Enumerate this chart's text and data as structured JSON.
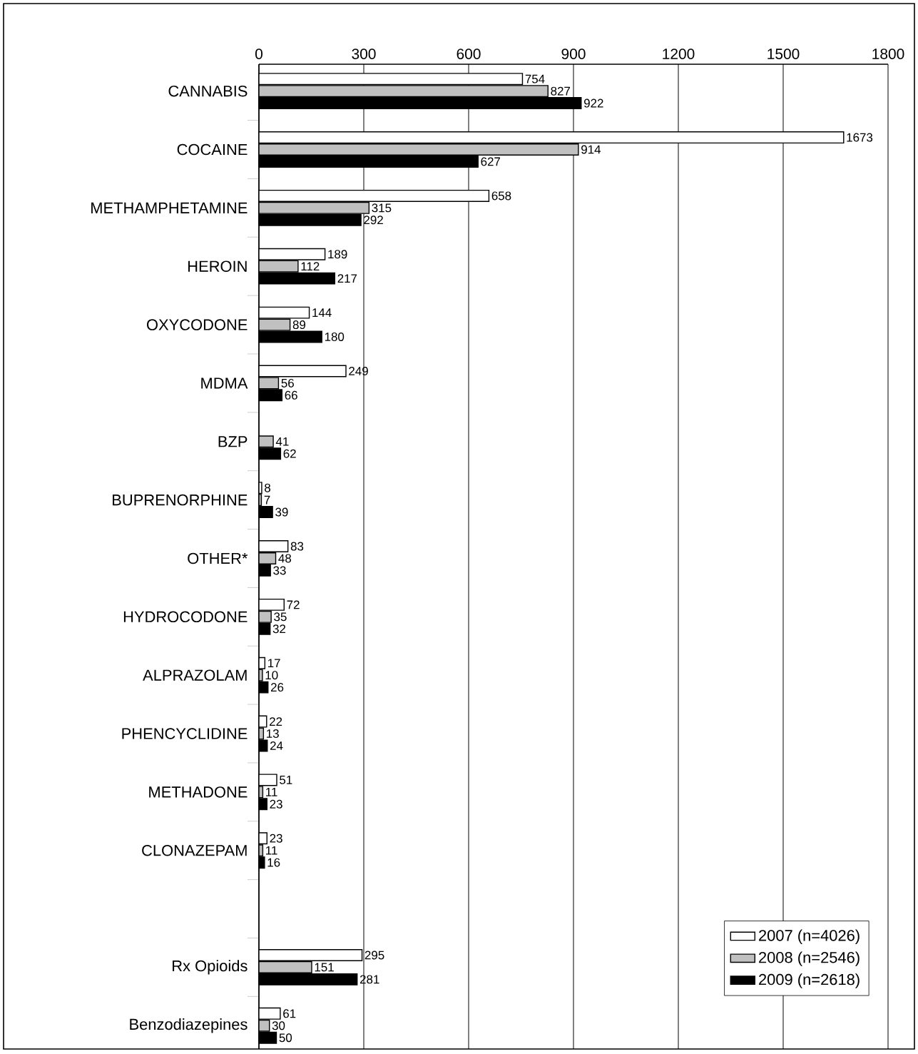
{
  "chart_data": {
    "type": "bar",
    "orientation": "horizontal",
    "categories": [
      "CANNABIS",
      "COCAINE",
      "METHAMPHETAMINE",
      "HEROIN",
      "OXYCODONE",
      "MDMA",
      "BZP",
      "BUPRENORPHINE",
      "OTHER*",
      "HYDROCODONE",
      "ALPRAZOLAM",
      "PHENCYCLIDINE",
      "METHADONE",
      "CLONAZEPAM",
      null,
      "Rx Opioids",
      "Benzodiazepines"
    ],
    "series": [
      {
        "name": "2007 (n=4026)",
        "color": "#ffffff",
        "values": [
          754,
          1673,
          658,
          189,
          144,
          249,
          null,
          8,
          83,
          72,
          17,
          22,
          51,
          23,
          null,
          295,
          61
        ]
      },
      {
        "name": "2008 (n=2546)",
        "color": "#c0c0c0",
        "values": [
          827,
          914,
          315,
          112,
          89,
          56,
          41,
          7,
          48,
          35,
          10,
          13,
          11,
          11,
          null,
          151,
          30
        ]
      },
      {
        "name": "2009 (n=2618)",
        "color": "#000000",
        "values": [
          922,
          627,
          292,
          217,
          180,
          66,
          62,
          39,
          33,
          32,
          26,
          24,
          23,
          16,
          null,
          281,
          50
        ]
      }
    ],
    "xlim": [
      0,
      1800
    ],
    "xticks": [
      0,
      300,
      600,
      900,
      1200,
      1500,
      1800
    ],
    "grid": "x",
    "legend": "bottom right",
    "data_labels": true
  }
}
